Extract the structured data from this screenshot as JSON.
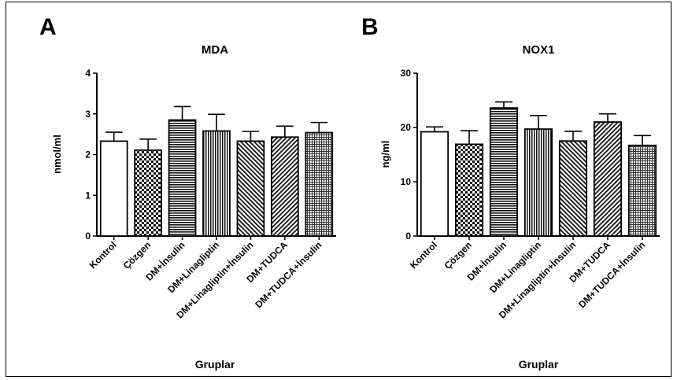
{
  "chart_data": [
    {
      "type": "bar",
      "panel_label": "A",
      "title": "MDA",
      "xlabel": "Gruplar",
      "ylabel": "nmol/ml",
      "ylim": [
        0,
        4
      ],
      "yticks": [
        "0",
        "1",
        "2",
        "3",
        "4"
      ],
      "categories": [
        "Kontrol",
        "Çözgen",
        "DM+İnsulin",
        "DM+Linagliptin",
        "DM+Linagliptin+İnsulin",
        "DM+TUDCA",
        "DM+TUDCA+İnsulin"
      ],
      "values": [
        2.33,
        2.11,
        2.85,
        2.58,
        2.33,
        2.43,
        2.54
      ],
      "error": [
        0.22,
        0.27,
        0.33,
        0.41,
        0.24,
        0.27,
        0.25
      ],
      "patterns": [
        "white",
        "checker",
        "hlines",
        "vlines",
        "diag-left",
        "diag-right",
        "grid"
      ],
      "grid": false
    },
    {
      "type": "bar",
      "panel_label": "B",
      "title": "NOX1",
      "xlabel": "Gruplar",
      "ylabel": "ng/ml",
      "ylim": [
        0,
        30
      ],
      "yticks": [
        "0",
        "10",
        "20",
        "30"
      ],
      "categories": [
        "Kontrol",
        "Çözgen",
        "DM+İnsulin",
        "DM+Linagliptin",
        "DM+Linagliptin+İnsulin",
        "DM+TUDCA",
        "DM+TUDCA+İnsulin"
      ],
      "values": [
        19.2,
        16.9,
        23.6,
        19.7,
        17.5,
        21.0,
        16.7
      ],
      "error": [
        0.9,
        2.5,
        1.1,
        2.5,
        1.8,
        1.5,
        1.8
      ],
      "patterns": [
        "white",
        "checker",
        "hlines",
        "vlines",
        "diag-left",
        "diag-right",
        "grid"
      ],
      "grid": false
    }
  ]
}
